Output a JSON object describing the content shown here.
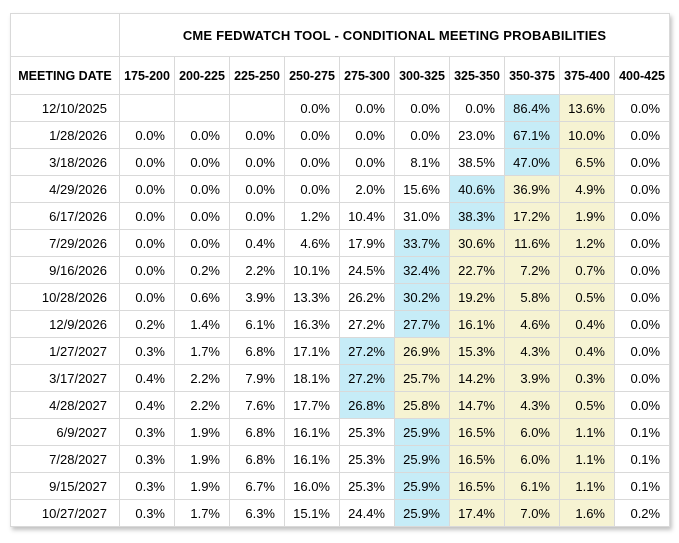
{
  "table": {
    "title": "CME FEDWATCH TOOL - CONDITIONAL MEETING PROBABILITIES",
    "date_header": "MEETING DATE",
    "rate_headers": [
      "175-200",
      "200-225",
      "225-250",
      "250-275",
      "275-300",
      "300-325",
      "325-350",
      "350-375",
      "375-400",
      "400-425"
    ],
    "rows": [
      {
        "date": "12/10/2025",
        "values": [
          "",
          "",
          "",
          "0.0%",
          "0.0%",
          "0.0%",
          "0.0%",
          "86.4%",
          "13.6%",
          "0.0%"
        ],
        "blue_index": 7,
        "yellow_indices": [
          8
        ]
      },
      {
        "date": "1/28/2026",
        "values": [
          "0.0%",
          "0.0%",
          "0.0%",
          "0.0%",
          "0.0%",
          "0.0%",
          "23.0%",
          "67.1%",
          "10.0%",
          "0.0%"
        ],
        "blue_index": 7,
        "yellow_indices": [
          8
        ]
      },
      {
        "date": "3/18/2026",
        "values": [
          "0.0%",
          "0.0%",
          "0.0%",
          "0.0%",
          "0.0%",
          "8.1%",
          "38.5%",
          "47.0%",
          "6.5%",
          "0.0%"
        ],
        "blue_index": 7,
        "yellow_indices": [
          8
        ]
      },
      {
        "date": "4/29/2026",
        "values": [
          "0.0%",
          "0.0%",
          "0.0%",
          "0.0%",
          "2.0%",
          "15.6%",
          "40.6%",
          "36.9%",
          "4.9%",
          "0.0%"
        ],
        "blue_index": 6,
        "yellow_indices": [
          7,
          8
        ]
      },
      {
        "date": "6/17/2026",
        "values": [
          "0.0%",
          "0.0%",
          "0.0%",
          "1.2%",
          "10.4%",
          "31.0%",
          "38.3%",
          "17.2%",
          "1.9%",
          "0.0%"
        ],
        "blue_index": 6,
        "yellow_indices": [
          7,
          8
        ]
      },
      {
        "date": "7/29/2026",
        "values": [
          "0.0%",
          "0.0%",
          "0.4%",
          "4.6%",
          "17.9%",
          "33.7%",
          "30.6%",
          "11.6%",
          "1.2%",
          "0.0%"
        ],
        "blue_index": 5,
        "yellow_indices": [
          6,
          7,
          8
        ]
      },
      {
        "date": "9/16/2026",
        "values": [
          "0.0%",
          "0.2%",
          "2.2%",
          "10.1%",
          "24.5%",
          "32.4%",
          "22.7%",
          "7.2%",
          "0.7%",
          "0.0%"
        ],
        "blue_index": 5,
        "yellow_indices": [
          6,
          7,
          8
        ]
      },
      {
        "date": "10/28/2026",
        "values": [
          "0.0%",
          "0.6%",
          "3.9%",
          "13.3%",
          "26.2%",
          "30.2%",
          "19.2%",
          "5.8%",
          "0.5%",
          "0.0%"
        ],
        "blue_index": 5,
        "yellow_indices": [
          6,
          7,
          8
        ]
      },
      {
        "date": "12/9/2026",
        "values": [
          "0.2%",
          "1.4%",
          "6.1%",
          "16.3%",
          "27.2%",
          "27.7%",
          "16.1%",
          "4.6%",
          "0.4%",
          "0.0%"
        ],
        "blue_index": 5,
        "yellow_indices": [
          6,
          7,
          8
        ]
      },
      {
        "date": "1/27/2027",
        "values": [
          "0.3%",
          "1.7%",
          "6.8%",
          "17.1%",
          "27.2%",
          "26.9%",
          "15.3%",
          "4.3%",
          "0.4%",
          "0.0%"
        ],
        "blue_index": 4,
        "yellow_indices": [
          5,
          6,
          7,
          8
        ]
      },
      {
        "date": "3/17/2027",
        "values": [
          "0.4%",
          "2.2%",
          "7.9%",
          "18.1%",
          "27.2%",
          "25.7%",
          "14.2%",
          "3.9%",
          "0.3%",
          "0.0%"
        ],
        "blue_index": 4,
        "yellow_indices": [
          5,
          6,
          7,
          8
        ]
      },
      {
        "date": "4/28/2027",
        "values": [
          "0.4%",
          "2.2%",
          "7.6%",
          "17.7%",
          "26.8%",
          "25.8%",
          "14.7%",
          "4.3%",
          "0.5%",
          "0.0%"
        ],
        "blue_index": 4,
        "yellow_indices": [
          5,
          6,
          7,
          8
        ]
      },
      {
        "date": "6/9/2027",
        "values": [
          "0.3%",
          "1.9%",
          "6.8%",
          "16.1%",
          "25.3%",
          "25.9%",
          "16.5%",
          "6.0%",
          "1.1%",
          "0.1%"
        ],
        "blue_index": 5,
        "yellow_indices": [
          6,
          7,
          8
        ]
      },
      {
        "date": "7/28/2027",
        "values": [
          "0.3%",
          "1.9%",
          "6.8%",
          "16.1%",
          "25.3%",
          "25.9%",
          "16.5%",
          "6.0%",
          "1.1%",
          "0.1%"
        ],
        "blue_index": 5,
        "yellow_indices": [
          6,
          7,
          8
        ]
      },
      {
        "date": "9/15/2027",
        "values": [
          "0.3%",
          "1.9%",
          "6.7%",
          "16.0%",
          "25.3%",
          "25.9%",
          "16.5%",
          "6.1%",
          "1.1%",
          "0.1%"
        ],
        "blue_index": 5,
        "yellow_indices": [
          6,
          7,
          8
        ]
      },
      {
        "date": "10/27/2027",
        "values": [
          "0.3%",
          "1.7%",
          "6.3%",
          "15.1%",
          "24.4%",
          "25.9%",
          "17.4%",
          "7.0%",
          "1.6%",
          "0.2%"
        ],
        "blue_index": 5,
        "yellow_indices": [
          6,
          7,
          8
        ]
      }
    ]
  },
  "colors": {
    "blue_highlight": "#c6ecf7",
    "yellow_highlight": "#f6f3d2",
    "grid_border": "#d9d9d9",
    "text": "#000000",
    "background": "#ffffff"
  }
}
